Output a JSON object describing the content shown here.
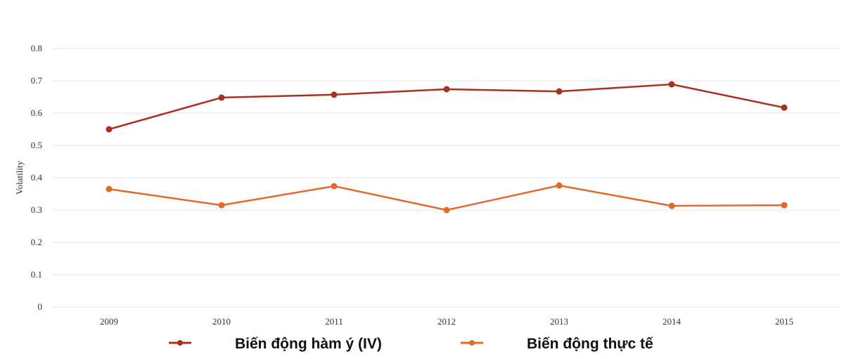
{
  "chart_data": {
    "type": "line",
    "title": "",
    "xlabel": "",
    "ylabel": "Volatility",
    "categories": [
      "2009",
      "2010",
      "2011",
      "2012",
      "2013",
      "2014",
      "2015"
    ],
    "ylim": [
      0,
      0.8
    ],
    "yticks": [
      "0",
      "0.1",
      "0.2",
      "0.3",
      "0.4",
      "0.5",
      "0.6",
      "0.7",
      "0.8"
    ],
    "grid": true,
    "legend_position": "bottom",
    "series": [
      {
        "name": "Biến động hàm ý (IV)",
        "color": "#a8311f",
        "values": [
          0.55,
          0.648,
          0.657,
          0.674,
          0.667,
          0.689,
          0.617
        ]
      },
      {
        "name": "Biến động thực tế",
        "color": "#e2692b",
        "values": [
          0.365,
          0.315,
          0.374,
          0.3,
          0.376,
          0.313,
          0.315
        ]
      }
    ]
  }
}
